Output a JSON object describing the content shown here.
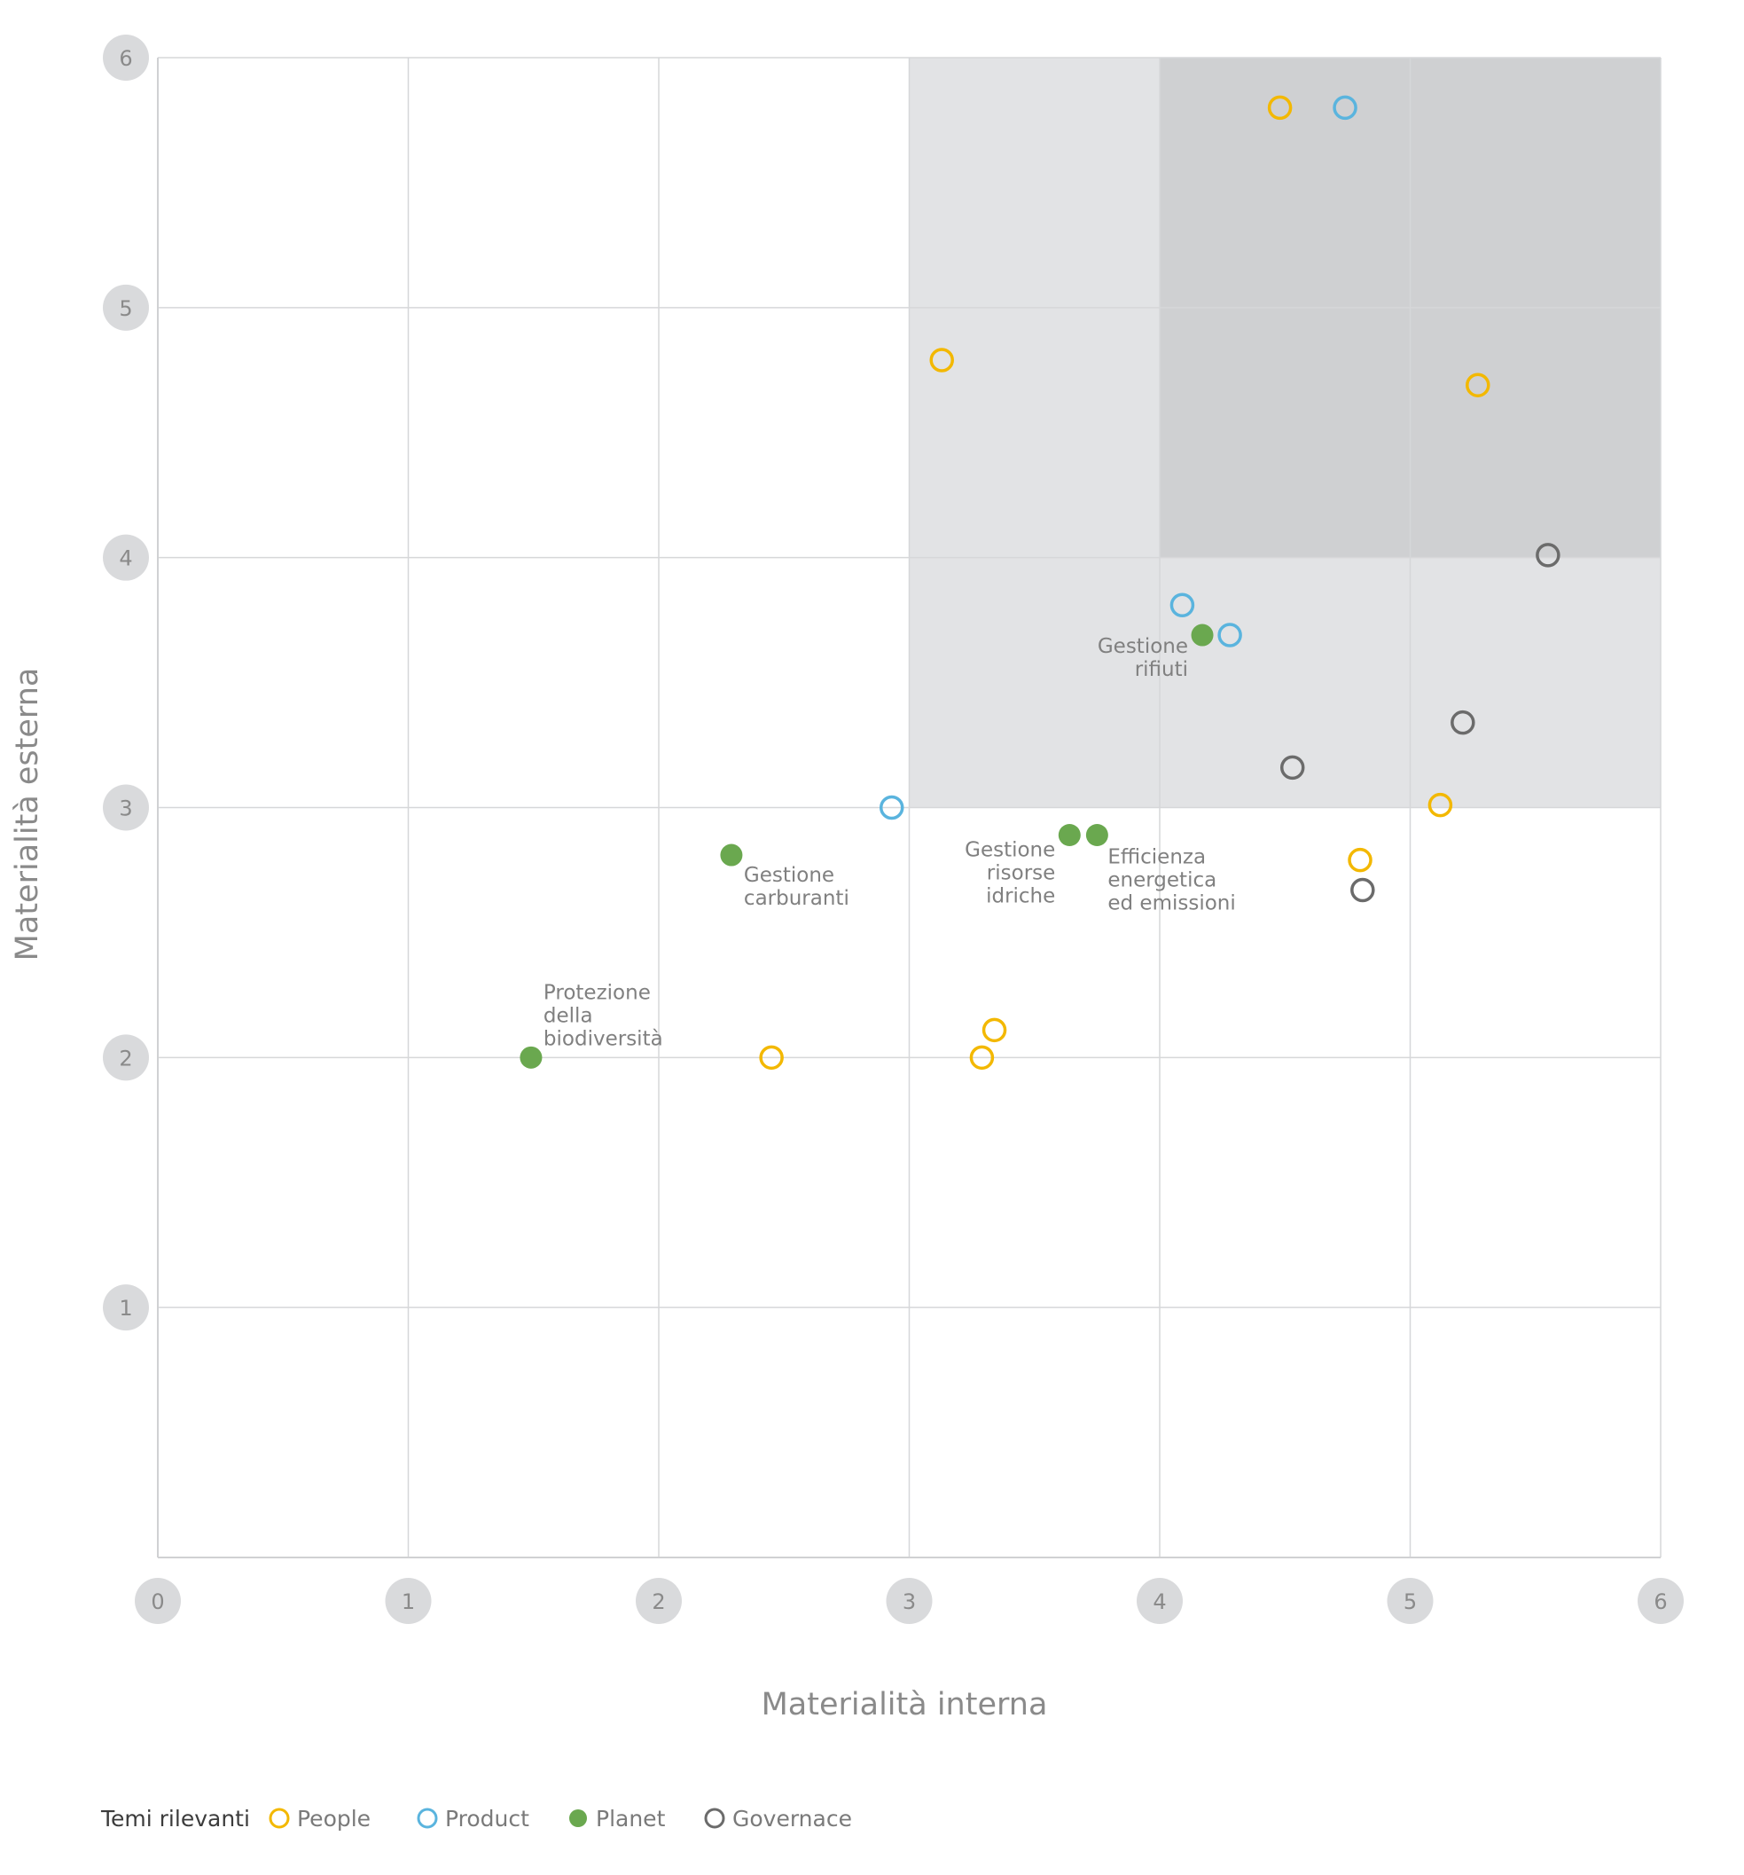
{
  "chart_data": {
    "type": "scatter",
    "title": "",
    "xlabel": "Materialità interna",
    "ylabel": "Materialità esterna",
    "xlim": [
      0,
      6
    ],
    "ylim": [
      0,
      6
    ],
    "x_ticks": [
      "0",
      "1",
      "2",
      "3",
      "4",
      "5",
      "6"
    ],
    "y_ticks": [
      "1",
      "2",
      "3",
      "4",
      "5",
      "6"
    ],
    "grid": true,
    "highlight_regions": [
      {
        "x": [
          3,
          6
        ],
        "y": [
          3,
          6
        ],
        "color": "#e2e3e5"
      },
      {
        "x": [
          4,
          6
        ],
        "y": [
          4,
          6
        ],
        "color": "#cfd0d2"
      }
    ],
    "legend": {
      "title": "Temi rilevanti",
      "placement": "bottom-left",
      "entries": [
        {
          "label": "People",
          "color": "#f3b800",
          "filled": false
        },
        {
          "label": "Product",
          "color": "#5ab4de",
          "filled": false
        },
        {
          "label": "Planet",
          "color": "#6aa84f",
          "filled": true
        },
        {
          "label": "Governace",
          "color": "#6b6b6b",
          "filled": false
        }
      ]
    },
    "series": [
      {
        "name": "People",
        "color": "#f3b800",
        "filled": false,
        "points": [
          [
            4.48,
            5.8
          ],
          [
            3.13,
            4.79
          ],
          [
            5.27,
            4.69
          ],
          [
            5.12,
            3.01
          ],
          [
            4.8,
            2.79
          ],
          [
            3.34,
            2.11
          ],
          [
            3.29,
            2.0
          ],
          [
            2.45,
            2.0
          ]
        ]
      },
      {
        "name": "Product",
        "color": "#5ab4de",
        "filled": false,
        "points": [
          [
            4.74,
            5.8
          ],
          [
            4.09,
            3.81
          ],
          [
            4.28,
            3.69
          ],
          [
            2.93,
            3.0
          ]
        ]
      },
      {
        "name": "Planet",
        "color": "#6aa84f",
        "filled": true,
        "points": [
          [
            4.17,
            3.69
          ],
          [
            3.64,
            2.89
          ],
          [
            3.75,
            2.89
          ],
          [
            2.29,
            2.81
          ],
          [
            1.49,
            2.0
          ]
        ]
      },
      {
        "name": "Governace",
        "color": "#6b6b6b",
        "filled": false,
        "points": [
          [
            5.55,
            4.01
          ],
          [
            5.21,
            3.34
          ],
          [
            4.53,
            3.16
          ],
          [
            4.81,
            2.67
          ]
        ]
      }
    ],
    "annotations": [
      {
        "lines": [
          "Gestione",
          "rifiuti"
        ],
        "x": 4.17,
        "y": 3.69,
        "anchor": "end",
        "dx": -16,
        "dy": 20
      },
      {
        "lines": [
          "Gestione",
          "carburanti"
        ],
        "x": 2.29,
        "y": 2.81,
        "anchor": "start",
        "dx": 14,
        "dy": 30
      },
      {
        "lines": [
          "Gestione",
          "risorse",
          "idriche"
        ],
        "x": 3.64,
        "y": 2.89,
        "anchor": "end",
        "dx": -16,
        "dy": 24
      },
      {
        "lines": [
          "Efficienza",
          "energetica",
          "ed emissioni"
        ],
        "x": 3.75,
        "y": 2.89,
        "anchor": "start",
        "dx": 12,
        "dy": 32
      },
      {
        "lines": [
          "Protezione",
          "della",
          "biodiversità"
        ],
        "x": 1.49,
        "y": 2.0,
        "anchor": "start",
        "dx": 14,
        "dy": -66
      }
    ]
  }
}
